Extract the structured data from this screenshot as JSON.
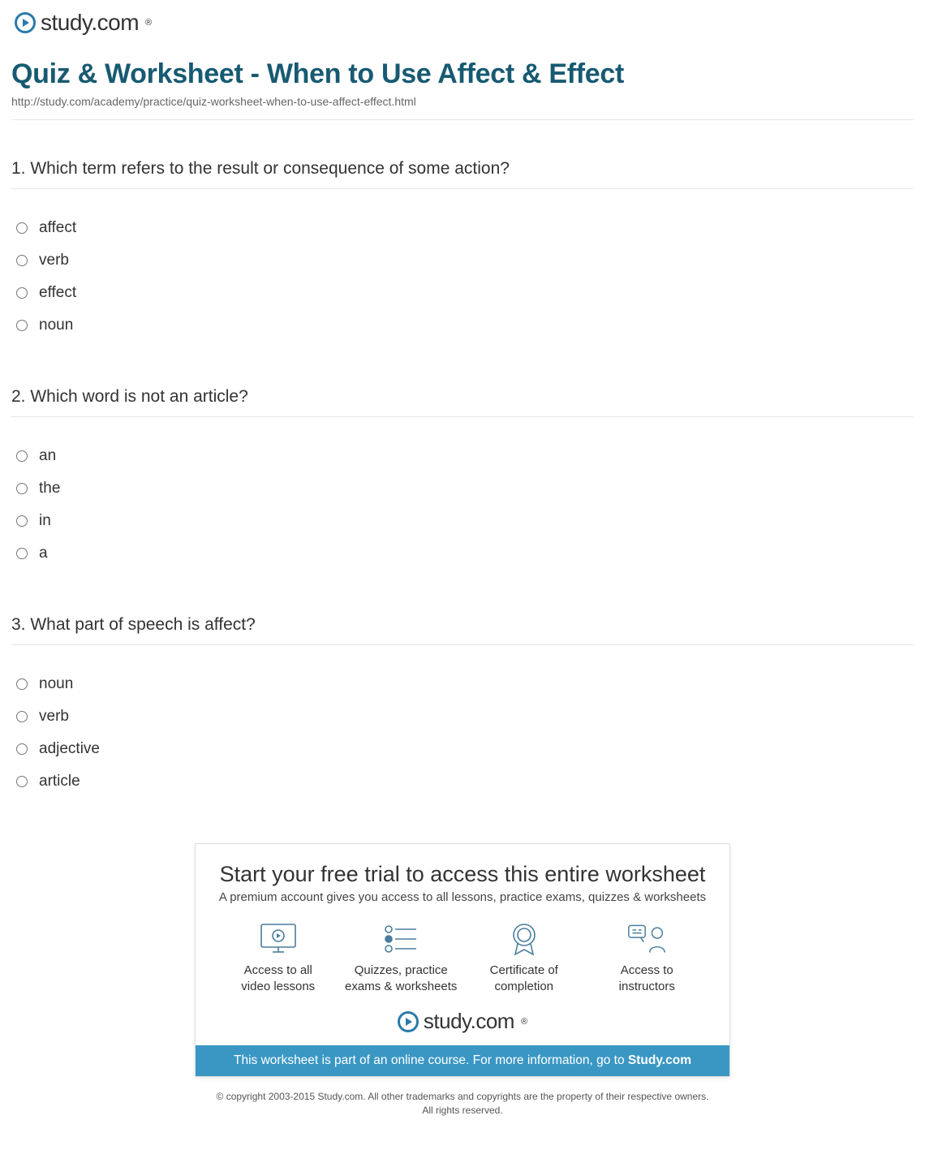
{
  "brand": {
    "name": "study.com",
    "title_color": "#175a72",
    "accent_color": "#3a97c4"
  },
  "header": {
    "title": "Quiz & Worksheet - When to Use Affect & Effect",
    "url": "http://study.com/academy/practice/quiz-worksheet-when-to-use-affect-effect.html"
  },
  "questions": [
    {
      "number": "1.",
      "text": "Which term refers to the result or consequence of some action?",
      "options": [
        "affect",
        "verb",
        "effect",
        "noun"
      ]
    },
    {
      "number": "2.",
      "text": "Which word is not an article?",
      "options": [
        "an",
        "the",
        "in",
        "a"
      ]
    },
    {
      "number": "3.",
      "text": "What part of speech is affect?",
      "options": [
        "noun",
        "verb",
        "adjective",
        "article"
      ]
    }
  ],
  "promo": {
    "title": "Start your free trial to access this entire worksheet",
    "subtitle": "A premium account gives you access to all lessons, practice exams, quizzes & worksheets",
    "features": [
      {
        "label_line1": "Access to all",
        "label_line2": "video lessons"
      },
      {
        "label_line1": "Quizzes, practice",
        "label_line2": "exams & worksheets"
      },
      {
        "label_line1": "Certificate of",
        "label_line2": "completion"
      },
      {
        "label_line1": "Access to",
        "label_line2": "instructors"
      }
    ],
    "banner_pre": "This worksheet is part of an online course. For more information, go to ",
    "banner_link": "Study.com"
  },
  "copyright": {
    "line1": "© copyright 2003-2015 Study.com. All other trademarks and copyrights are the property of their respective owners.",
    "line2": "All rights reserved."
  }
}
